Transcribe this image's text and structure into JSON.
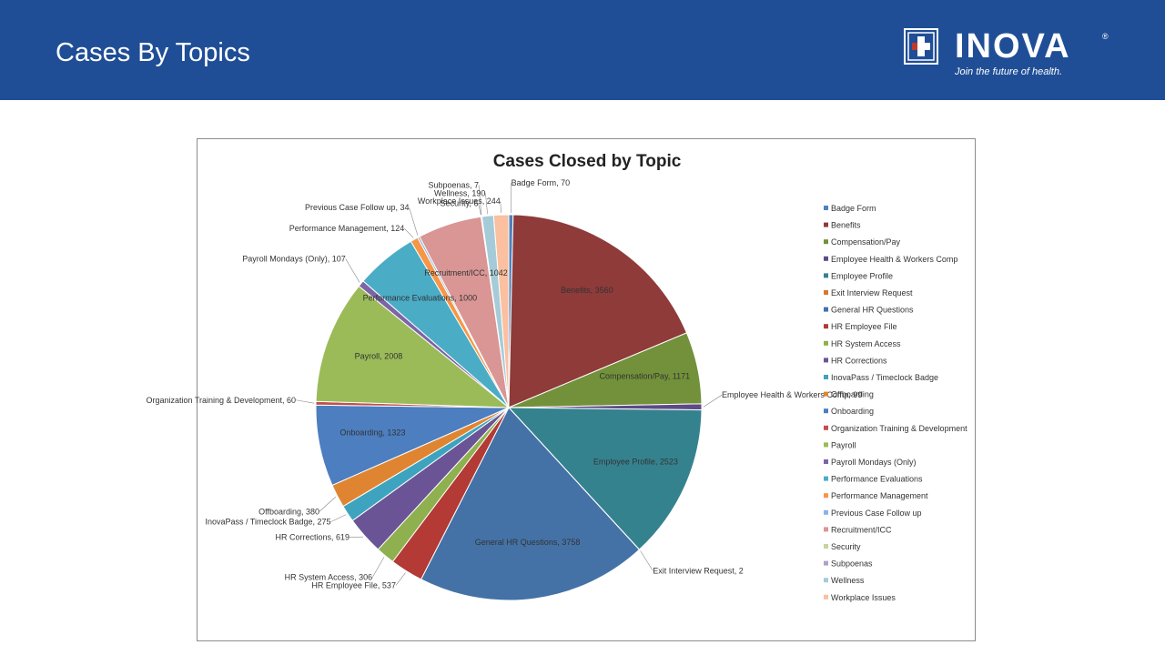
{
  "slide": {
    "title": "Cases By Topics"
  },
  "logo": {
    "name": "INOVA",
    "tagline": "Join the future of health."
  },
  "chart_data": {
    "type": "pie",
    "title": "Cases Closed by Topic",
    "legend_position": "right",
    "slices": [
      {
        "name": "Badge Form",
        "label": "Badge Form, 70",
        "value": 70,
        "color": "#4f81bd"
      },
      {
        "name": "Benefits",
        "label": "Benefits, 3560",
        "value": 3560,
        "color": "#8e3b3a"
      },
      {
        "name": "Compensation/Pay",
        "label": "Compensation/Pay, 1171",
        "value": 1171,
        "color": "#72913a"
      },
      {
        "name": "Employee Health & Workers Comp",
        "label": "Employee Health & Workers Comp, 99",
        "value": 99,
        "color": "#5e4a86"
      },
      {
        "name": "Employee Profile",
        "label": "Employee Profile, 2523",
        "value": 2523,
        "color": "#35828f"
      },
      {
        "name": "Exit Interview Request",
        "label": "Exit Interview Request, 2",
        "value": 2,
        "color": "#d8782d"
      },
      {
        "name": "General HR Questions",
        "label": "General HR Questions, 3758",
        "value": 3758,
        "color": "#4472a6"
      },
      {
        "name": "HR Employee File",
        "label": "HR Employee File, 537",
        "value": 537,
        "color": "#b33a35"
      },
      {
        "name": "HR System Access",
        "label": "HR System Access, 306",
        "value": 306,
        "color": "#8fb04e"
      },
      {
        "name": "HR Corrections",
        "label": "HR Corrections, 619",
        "value": 619,
        "color": "#6a5496"
      },
      {
        "name": "InovaPass / Timeclock Badge",
        "label": "InovaPass / Timeclock Badge, 275",
        "value": 275,
        "color": "#3ea3be"
      },
      {
        "name": "Offboarding",
        "label": "Offboarding, 380",
        "value": 380,
        "color": "#df8531"
      },
      {
        "name": "Onboarding",
        "label": "Onboarding, 1323",
        "value": 1323,
        "color": "#4c7ec0"
      },
      {
        "name": "Organization Training & Development",
        "label": "Organization Training & Development, 60",
        "value": 60,
        "color": "#c0504d"
      },
      {
        "name": "Payroll",
        "label": "Payroll, 2008",
        "value": 2008,
        "color": "#9bbb59"
      },
      {
        "name": "Payroll Mondays (Only)",
        "label": "Payroll Mondays (Only), 107",
        "value": 107,
        "color": "#7c64a6"
      },
      {
        "name": "Performance Evaluations",
        "label": "Performance Evaluations, 1000",
        "value": 1000,
        "color": "#4bacc6"
      },
      {
        "name": "Performance Management",
        "label": "Performance Management, 124",
        "value": 124,
        "color": "#f79646"
      },
      {
        "name": "Previous Case Follow up",
        "label": "Previous Case Follow up, 34",
        "value": 34,
        "color": "#8db3e2"
      },
      {
        "name": "Recruitment/ICC",
        "label": "Recruitment/ICC, 1042",
        "value": 1042,
        "color": "#d99694"
      },
      {
        "name": "Security",
        "label": "Security, 6",
        "value": 6,
        "color": "#c3d69b"
      },
      {
        "name": "Subpoenas",
        "label": "Subpoenas, 7",
        "value": 7,
        "color": "#b2a1c7"
      },
      {
        "name": "Wellness",
        "label": "Wellness, 190",
        "value": 190,
        "color": "#a6cbd8"
      },
      {
        "name": "Workplace Issues",
        "label": "Workplace Issues, 244",
        "value": 244,
        "color": "#fac09f"
      }
    ]
  }
}
